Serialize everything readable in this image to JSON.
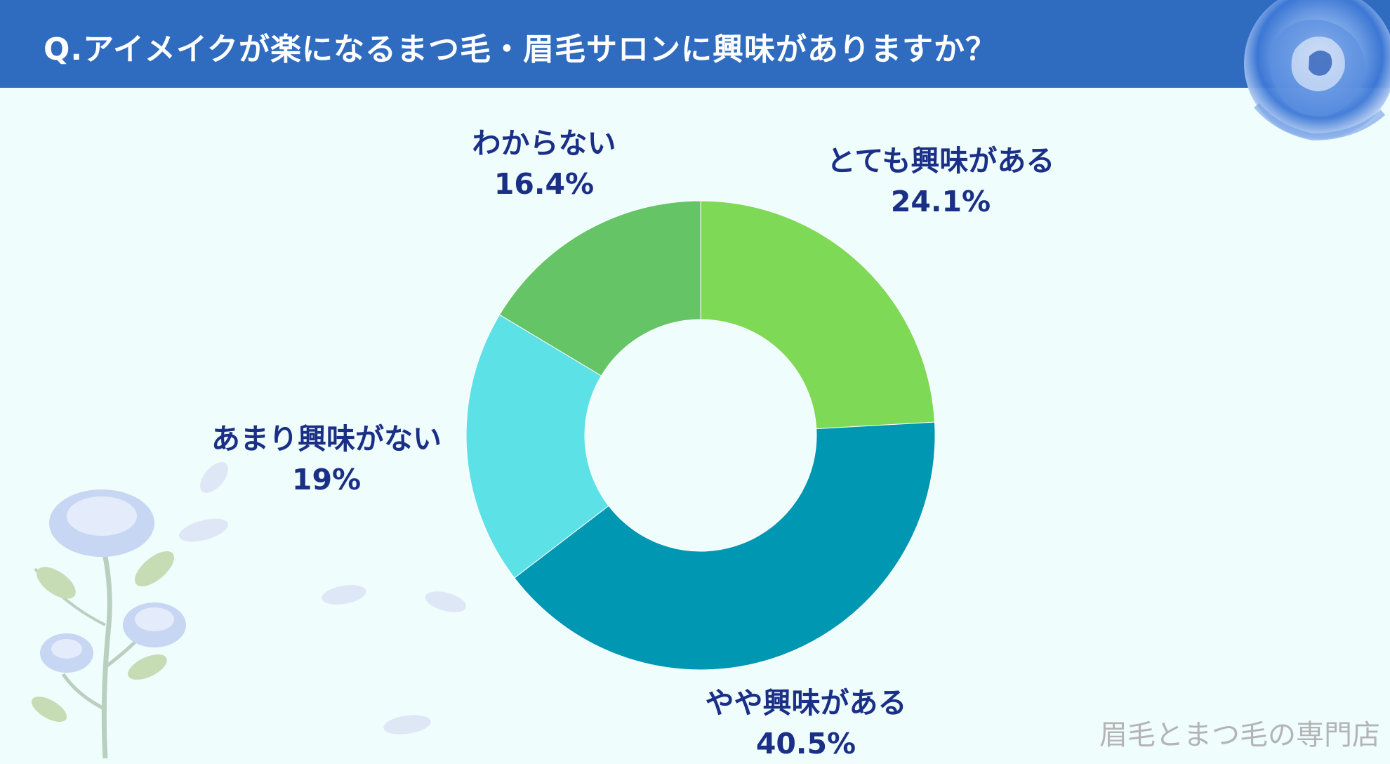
{
  "header": {
    "title": "Q.アイメイクが楽になるまつ毛・眉毛サロンに興味がありますか？"
  },
  "chart_data": {
    "type": "pie",
    "title": "Q.アイメイクが楽になるまつ毛・眉毛サロンに興味がありますか？",
    "donut": true,
    "slices": [
      {
        "label": "とても興味がある",
        "value": 24.1,
        "display": "24.1%",
        "color": "#7ed957"
      },
      {
        "label": "やや興味がある",
        "value": 40.5,
        "display": "40.5%",
        "color": "#0097b2"
      },
      {
        "label": "あまり興味がない",
        "value": 19,
        "display": "19%",
        "color": "#5ce1e6"
      },
      {
        "label": "わからない",
        "value": 16.4,
        "display": "16.4%",
        "color": "#64c466"
      }
    ]
  },
  "watermark": "眉毛とまつ毛の専門店",
  "decor": {
    "top_right": "blue-rose-icon",
    "bottom_left": "rose-branch-icon"
  }
}
